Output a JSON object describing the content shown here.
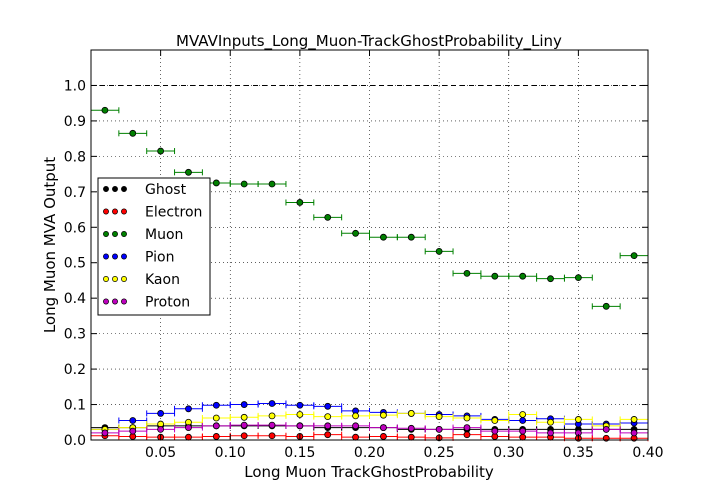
{
  "chart_data": {
    "type": "scatter",
    "title": "MVAVInputs_Long_Muon-TrackGhostProbability_Liny",
    "xlabel": "Long Muon TrackGhostProbability",
    "ylabel": "Long Muon MVA Output",
    "xlim": [
      0.0,
      0.4
    ],
    "ylim": [
      0.0,
      1.1
    ],
    "xticks": [
      "0.05",
      "0.10",
      "0.15",
      "0.20",
      "0.25",
      "0.30",
      "0.35",
      "0.40"
    ],
    "yticks": [
      "0.0",
      "0.1",
      "0.2",
      "0.3",
      "0.4",
      "0.5",
      "0.6",
      "0.7",
      "0.8",
      "0.9",
      "1.0"
    ],
    "grid": true,
    "reference_line": 1.0,
    "legend_position": "left",
    "bin_width": 0.02,
    "x": [
      0.01,
      0.03,
      0.05,
      0.07,
      0.09,
      0.11,
      0.13,
      0.15,
      0.17,
      0.19,
      0.21,
      0.23,
      0.25,
      0.27,
      0.29,
      0.31,
      0.33,
      0.35,
      0.37,
      0.39
    ],
    "series": [
      {
        "name": "Ghost",
        "color": "#000000",
        "values": [
          0.035,
          0.035,
          0.04,
          0.04,
          0.04,
          0.04,
          0.04,
          0.04,
          0.035,
          0.035,
          0.035,
          0.03,
          0.03,
          0.03,
          0.03,
          0.03,
          0.03,
          0.03,
          0.03,
          0.03
        ]
      },
      {
        "name": "Electron",
        "color": "#ff0000",
        "values": [
          0.012,
          0.01,
          0.008,
          0.008,
          0.01,
          0.012,
          0.012,
          0.01,
          0.015,
          0.008,
          0.01,
          0.008,
          0.006,
          0.015,
          0.01,
          0.008,
          0.008,
          0.005,
          0.005,
          0.005
        ]
      },
      {
        "name": "Muon",
        "color": "#008000",
        "values": [
          0.93,
          0.865,
          0.815,
          0.755,
          0.725,
          0.722,
          0.722,
          0.67,
          0.628,
          0.583,
          0.572,
          0.572,
          0.532,
          0.47,
          0.462,
          0.462,
          0.455,
          0.458,
          0.377,
          0.52
        ]
      },
      {
        "name": "Pion",
        "color": "#0000ff",
        "values": [
          0.03,
          0.055,
          0.075,
          0.088,
          0.098,
          0.1,
          0.103,
          0.098,
          0.095,
          0.082,
          0.078,
          0.075,
          0.072,
          0.068,
          0.058,
          0.055,
          0.06,
          0.045,
          0.045,
          0.048
        ]
      },
      {
        "name": "Kaon",
        "color": "#ffff00",
        "values": [
          0.03,
          0.035,
          0.045,
          0.05,
          0.062,
          0.064,
          0.068,
          0.072,
          0.066,
          0.068,
          0.07,
          0.075,
          0.066,
          0.062,
          0.055,
          0.072,
          0.05,
          0.058,
          0.04,
          0.058
        ]
      },
      {
        "name": "Proton",
        "color": "#bf00bf",
        "values": [
          0.02,
          0.025,
          0.03,
          0.035,
          0.04,
          0.042,
          0.042,
          0.04,
          0.04,
          0.04,
          0.035,
          0.033,
          0.03,
          0.035,
          0.025,
          0.025,
          0.02,
          0.02,
          0.03,
          0.02
        ]
      }
    ]
  }
}
